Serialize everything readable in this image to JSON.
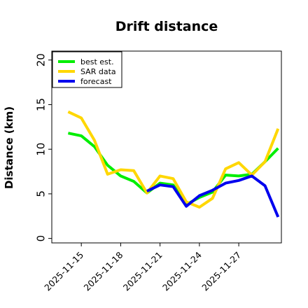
{
  "chart_data": {
    "type": "line",
    "title": "Drift distance",
    "xlabel": "",
    "ylabel": "Distance (km)",
    "ylim": [
      -0.5,
      21
    ],
    "yticks": [
      0,
      5,
      10,
      15,
      20
    ],
    "xlim": [
      "2025-11-12T18:00",
      "2025-11-30T06:00"
    ],
    "xticks": [
      "2025-11-15",
      "2025-11-18",
      "2025-11-21",
      "2025-11-24",
      "2025-11-27"
    ],
    "grid": false,
    "legend_position": "top-left",
    "series": [
      {
        "name": "best est.",
        "color": "#00ee00",
        "points": [
          [
            "2025-11-14",
            11.8
          ],
          [
            "2025-11-15",
            11.5
          ],
          [
            "2025-11-16",
            10.3
          ],
          [
            "2025-11-17",
            8.2
          ],
          [
            "2025-11-18",
            7.0
          ],
          [
            "2025-11-19",
            6.4
          ],
          [
            "2025-11-20",
            5.1
          ],
          [
            "2025-11-21",
            6.2
          ],
          [
            "2025-11-22",
            6.0
          ],
          [
            "2025-11-23",
            3.8
          ],
          [
            "2025-11-24",
            4.6
          ],
          [
            "2025-11-25",
            5.2
          ],
          [
            "2025-11-26",
            7.1
          ],
          [
            "2025-11-27",
            7.0
          ],
          [
            "2025-11-28",
            7.2
          ],
          [
            "2025-11-29",
            8.6
          ],
          [
            "2025-11-30",
            10.1
          ]
        ]
      },
      {
        "name": "SAR data",
        "color": "#ffd700",
        "points": [
          [
            "2025-11-14",
            14.2
          ],
          [
            "2025-11-15",
            13.5
          ],
          [
            "2025-11-16",
            11.0
          ],
          [
            "2025-11-17",
            7.2
          ],
          [
            "2025-11-18",
            7.7
          ],
          [
            "2025-11-19",
            7.6
          ],
          [
            "2025-11-20",
            5.1
          ],
          [
            "2025-11-21",
            7.0
          ],
          [
            "2025-11-22",
            6.7
          ],
          [
            "2025-11-23",
            4.1
          ],
          [
            "2025-11-24",
            3.5
          ],
          [
            "2025-11-25",
            4.5
          ],
          [
            "2025-11-26",
            7.8
          ],
          [
            "2025-11-27",
            8.5
          ],
          [
            "2025-11-28",
            7.1
          ],
          [
            "2025-11-29",
            8.6
          ],
          [
            "2025-11-30",
            12.3
          ]
        ]
      },
      {
        "name": "forecast",
        "color": "#0000ee",
        "points": [
          [
            "2025-11-20",
            5.3
          ],
          [
            "2025-11-21",
            6.0
          ],
          [
            "2025-11-22",
            5.8
          ],
          [
            "2025-11-23",
            3.6
          ],
          [
            "2025-11-24",
            4.8
          ],
          [
            "2025-11-25",
            5.4
          ],
          [
            "2025-11-26",
            6.2
          ],
          [
            "2025-11-27",
            6.5
          ],
          [
            "2025-11-28",
            7.0
          ],
          [
            "2025-11-29",
            5.9
          ],
          [
            "2025-11-30",
            2.4
          ]
        ]
      }
    ]
  }
}
